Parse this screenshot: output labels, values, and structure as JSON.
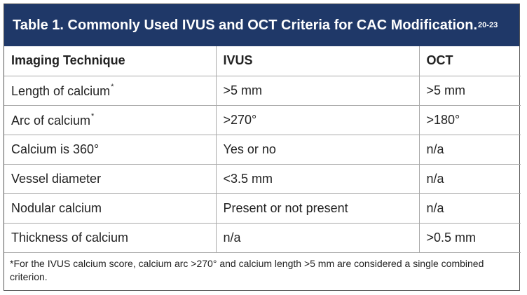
{
  "title": {
    "text": "Table 1. Commonly Used IVUS and OCT Criteria for CAC Modification.",
    "sup": "20-23"
  },
  "table": {
    "header": [
      "Imaging Technique",
      "IVUS",
      "OCT"
    ],
    "rows": [
      [
        {
          "text": "Length of calcium",
          "sup": "*"
        },
        ">5 mm",
        ">5 mm"
      ],
      [
        {
          "text": "Arc of calcium",
          "sup": "*"
        },
        ">270°",
        ">180°"
      ],
      [
        "Calcium is 360°",
        "Yes or no",
        "n/a"
      ],
      [
        "Vessel diameter",
        "<3.5 mm",
        "n/a"
      ],
      [
        "Nodular calcium",
        "Present or not present",
        "n/a"
      ],
      [
        "Thickness of calcium",
        "n/a",
        ">0.5 mm"
      ]
    ]
  },
  "footnote": "*For the IVUS calcium score, calcium arc >270° and calcium length >5 mm are considered a single combined criterion."
}
